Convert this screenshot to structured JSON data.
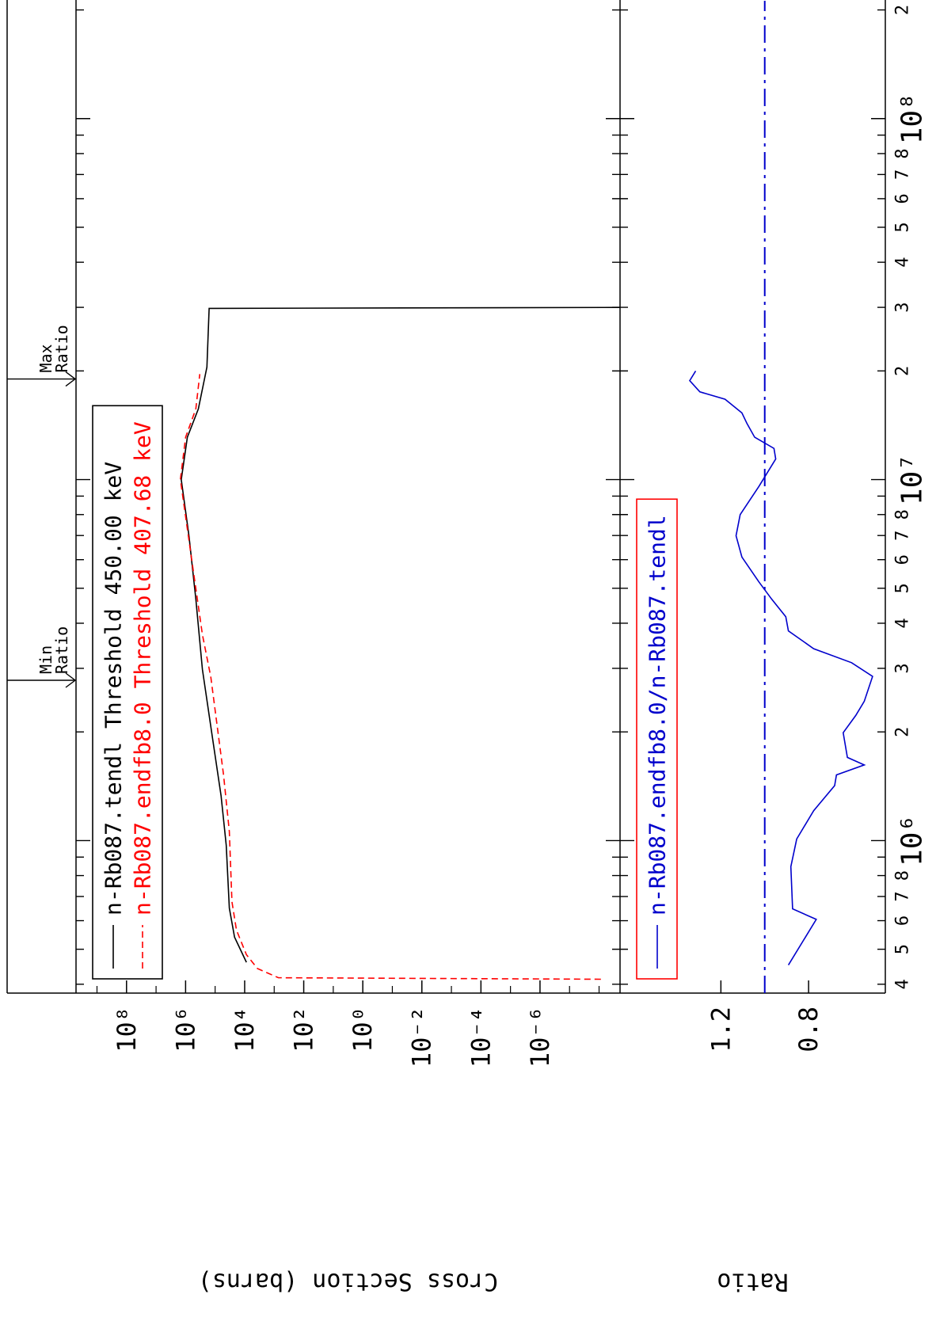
{
  "chart_data": [
    {
      "type": "line",
      "x_scale": "log",
      "y_scale": "log",
      "ylabel": "Cross Section (barns)",
      "xlim": [
        378000,
        212000000
      ],
      "ylim": [
        1.95e-09,
        5130000000.0
      ],
      "yticks": [
        {
          "value": 100000000.0,
          "label": "10⁸"
        },
        {
          "value": 1000000.0,
          "label": "10⁶"
        },
        {
          "value": 10000.0,
          "label": "10⁴"
        },
        {
          "value": 100,
          "label": "10²"
        },
        {
          "value": 1,
          "label": "10⁰"
        },
        {
          "value": 0.01,
          "label": "10⁻²"
        },
        {
          "value": 0.0001,
          "label": "10⁻⁴"
        },
        {
          "value": 1e-06,
          "label": "10⁻⁶"
        }
      ],
      "yminor_ticks": [
        1000000000.0,
        10000000.0,
        100000,
        1000,
        10,
        0.1,
        0.001,
        1e-05,
        1e-07,
        1e-08
      ],
      "legend": "upper left",
      "legend_frame_color": "#000000",
      "series": [
        {
          "name": "n-Rb087.tendl Threshold 450.00 keV",
          "color": "#000000",
          "line_style": "solid",
          "x": [
            460000,
            540000,
            650000,
            970000,
            1330000,
            1900000,
            2980000,
            4670000,
            6990000,
            10000000,
            13100000,
            15700000,
            20500000,
            29800000,
            30000000
          ],
          "values": [
            8700,
            22000,
            33000,
            42000,
            63000,
            120000,
            270000,
            450000,
            770000,
            1400000,
            870000,
            370000,
            190000,
            160000,
            1e-10
          ]
        },
        {
          "name": "n-Rb087.endfb8.0 Threshold 407.68 keV",
          "color": "#ff0000",
          "line_style": "dashed",
          "x": [
            413000,
            417000,
            442000,
            483000,
            565000,
            677000,
            1060000,
            1520000,
            2840000,
            3720000,
            5830000,
            10000000,
            13100000,
            15700000,
            19600000
          ],
          "values": [
            8.7e-09,
            720,
            3700,
            8700,
            19000,
            27000,
            33000,
            52000,
            140000,
            270000,
            590000,
            1500000,
            1000000,
            450000,
            330000
          ]
        }
      ],
      "annotations": [
        {
          "lines": [
            "Min",
            "Ratio"
          ],
          "x": 2780000
        },
        {
          "lines": [
            "Max",
            "Ratio"
          ],
          "x": 19000000
        }
      ]
    },
    {
      "type": "line",
      "x_scale": "log",
      "y_scale": "linear",
      "ylabel": "Ratio",
      "xlim": [
        378000,
        212000000
      ],
      "ylim": [
        0.45,
        1.66
      ],
      "yticks": [
        0.8,
        1.2
      ],
      "xticks": [
        {
          "value": 400000,
          "label": "4"
        },
        {
          "value": 500000,
          "label": "5"
        },
        {
          "value": 600000,
          "label": "6"
        },
        {
          "value": 700000,
          "label": "7"
        },
        {
          "value": 800000,
          "label": "8"
        },
        {
          "value": 1000000,
          "label": "10⁶"
        },
        {
          "value": 2000000,
          "label": "2"
        },
        {
          "value": 3000000,
          "label": "3"
        },
        {
          "value": 4000000,
          "label": "4"
        },
        {
          "value": 5000000,
          "label": "5"
        },
        {
          "value": 6000000,
          "label": "6"
        },
        {
          "value": 7000000,
          "label": "7"
        },
        {
          "value": 8000000,
          "label": "8"
        },
        {
          "value": 10000000,
          "label": "10⁷"
        },
        {
          "value": 20000000,
          "label": "2"
        },
        {
          "value": 30000000,
          "label": "3"
        },
        {
          "value": 40000000,
          "label": "4"
        },
        {
          "value": 50000000,
          "label": "5"
        },
        {
          "value": 60000000,
          "label": "6"
        },
        {
          "value": 70000000,
          "label": "7"
        },
        {
          "value": 80000000,
          "label": "8"
        },
        {
          "value": 100000000,
          "label": "10⁸"
        },
        {
          "value": 200000000,
          "label": "2"
        }
      ],
      "xminor_ticks": [
        900000,
        9000000,
        90000000
      ],
      "reference_line": 1,
      "reference_color": "#0000cc",
      "reference_style": "dashdot",
      "legend": "upper left",
      "legend_frame_color": "#ff0000",
      "series": [
        {
          "name": "n-Rb087.endfb8.0/n-Rb087.tendl",
          "color": "#0000cc",
          "line_style": "solid",
          "x": [
            452000,
            605000,
            647000,
            847000,
            1010000,
            1210000,
            1420000,
            1520000,
            1620000,
            1700000,
            1990000,
            2220000,
            2430000,
            2850000,
            3110000,
            3400000,
            3810000,
            4170000,
            4670000,
            5210000,
            6100000,
            6990000,
            8000000,
            9570000,
            11400000,
            12200000,
            13100000,
            14300000,
            15300000,
            16700000,
            17500000,
            18800000,
            20000000
          ],
          "values": [
            0.892,
            0.765,
            0.873,
            0.881,
            0.854,
            0.777,
            0.681,
            0.673,
            0.546,
            0.623,
            0.642,
            0.585,
            0.546,
            0.508,
            0.604,
            0.777,
            0.892,
            0.904,
            0.969,
            1.027,
            1.104,
            1.131,
            1.112,
            1.027,
            0.95,
            0.958,
            1.046,
            1.081,
            1.104,
            1.181,
            1.296,
            1.342,
            1.315
          ]
        }
      ]
    }
  ]
}
